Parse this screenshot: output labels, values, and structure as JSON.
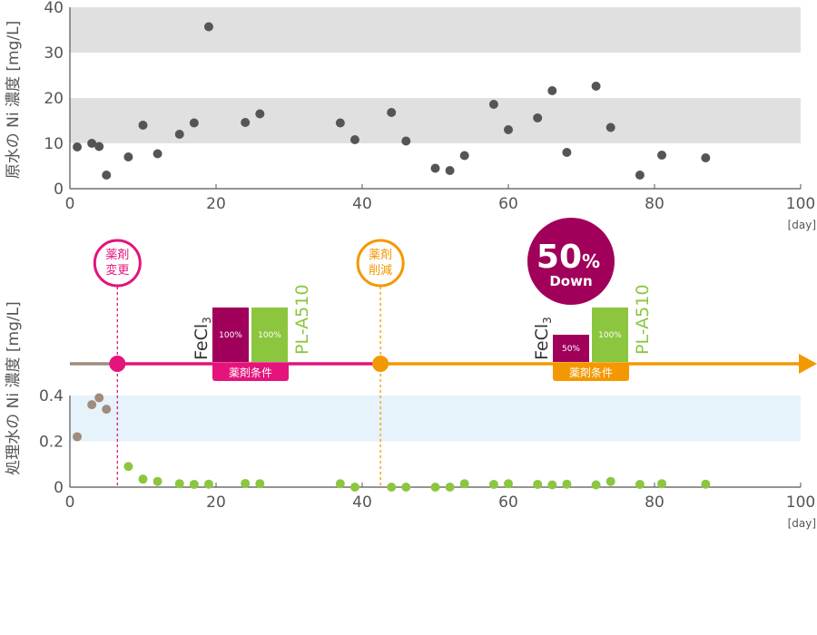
{
  "chart_data": [
    {
      "type": "scatter",
      "ylabel": "原水の Ni 濃度 [mg/L]",
      "xunit": "[day]",
      "xlim": [
        0,
        100
      ],
      "ylim": [
        0,
        40
      ],
      "xticks": [
        "0",
        "20",
        "40",
        "60",
        "80",
        "100"
      ],
      "yticks": [
        "0",
        "10",
        "20",
        "30",
        "40"
      ],
      "grid": false,
      "bands": [
        [
          10,
          20
        ],
        [
          30,
          40
        ]
      ],
      "colors": {
        "points": "#555555",
        "band": "#e0e0e0"
      },
      "series": [
        {
          "points": [
            [
              1,
              9.2
            ],
            [
              3,
              10
            ],
            [
              4,
              9.3
            ],
            [
              5,
              3
            ],
            [
              8,
              7
            ],
            [
              10,
              14
            ],
            [
              12,
              7.7
            ],
            [
              15,
              12
            ],
            [
              17,
              14.5
            ],
            [
              19,
              35.7
            ],
            [
              24,
              14.6
            ],
            [
              26,
              16.5
            ],
            [
              37,
              14.5
            ],
            [
              39,
              10.8
            ],
            [
              44,
              16.8
            ],
            [
              46,
              10.5
            ],
            [
              50,
              4.5
            ],
            [
              52,
              4
            ],
            [
              54,
              7.3
            ],
            [
              58,
              18.6
            ],
            [
              60,
              13
            ],
            [
              64,
              15.6
            ],
            [
              66,
              21.6
            ],
            [
              68,
              8
            ],
            [
              72,
              22.6
            ],
            [
              74,
              13.5
            ],
            [
              78,
              3
            ],
            [
              81,
              7.4
            ],
            [
              87,
              6.8
            ]
          ]
        }
      ]
    },
    {
      "type": "scatter",
      "ylabel": "処理水の Ni 濃度 [mg/L]",
      "xunit": "[day]",
      "xlim": [
        0,
        100
      ],
      "ylim": [
        0,
        0.4
      ],
      "xticks": [
        "0",
        "20",
        "40",
        "60",
        "80",
        "100"
      ],
      "yticks": [
        "0",
        "0.2",
        "0.4"
      ],
      "grid": false,
      "bands": [
        [
          0.2,
          0.4
        ]
      ],
      "colors": {
        "band": "#e6f3fb"
      },
      "series": [
        {
          "color": "#a08c7c",
          "points": [
            [
              1,
              0.22
            ],
            [
              3,
              0.36
            ],
            [
              4,
              0.39
            ],
            [
              5,
              0.34
            ]
          ]
        },
        {
          "color": "#8cc63f",
          "points": [
            [
              8,
              0.09
            ],
            [
              10,
              0.035
            ],
            [
              12,
              0.025
            ],
            [
              15,
              0.015
            ],
            [
              17,
              0.012
            ],
            [
              19,
              0.013
            ],
            [
              24,
              0.016
            ],
            [
              26,
              0.015
            ],
            [
              37,
              0.015
            ],
            [
              39,
              0.0
            ],
            [
              44,
              0.0
            ],
            [
              46,
              0.0
            ],
            [
              50,
              0.0
            ],
            [
              52,
              0.0
            ],
            [
              54,
              0.015
            ],
            [
              58,
              0.012
            ],
            [
              60,
              0.015
            ],
            [
              64,
              0.012
            ],
            [
              66,
              0.01
            ],
            [
              68,
              0.013
            ],
            [
              72,
              0.01
            ],
            [
              74,
              0.025
            ],
            [
              78,
              0.012
            ],
            [
              81,
              0.015
            ],
            [
              87,
              0.013
            ]
          ]
        }
      ]
    }
  ],
  "timeline": {
    "colors": {
      "pre": "#a08c7c",
      "phase1": "#e4147c",
      "phase2": "#f39800",
      "fecl3": "#a0005a",
      "pla": "#8cc63f"
    },
    "events": [
      {
        "x": 6.5,
        "line1": "薬剤",
        "line2": "変更",
        "color": "#e4147c"
      },
      {
        "x": 42.5,
        "line1": "薬剤",
        "line2": "削減",
        "color": "#f39800"
      }
    ],
    "phases": [
      {
        "cond_label": "薬剤条件",
        "color": "#e4147c",
        "fecl3_label": "FeCl",
        "fecl3_sub": "3",
        "fecl3_pct": "100%",
        "fecl3_level": 1.0,
        "pla_label": "PL-A510",
        "pla_pct": "100%",
        "pla_level": 1.0
      },
      {
        "cond_label": "薬剤条件",
        "color": "#f39800",
        "fecl3_label": "FeCl",
        "fecl3_sub": "3",
        "fecl3_pct": "50%",
        "fecl3_level": 0.5,
        "pla_label": "PL-A510",
        "pla_pct": "100%",
        "pla_level": 1.0
      }
    ],
    "badge": {
      "value": "50",
      "unit": "%",
      "text": "Down",
      "color": "#a0005a"
    }
  }
}
